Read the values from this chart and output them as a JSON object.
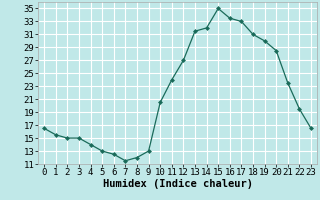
{
  "x": [
    0,
    1,
    2,
    3,
    4,
    5,
    6,
    7,
    8,
    9,
    10,
    11,
    12,
    13,
    14,
    15,
    16,
    17,
    18,
    19,
    20,
    21,
    22,
    23
  ],
  "y": [
    16.5,
    15.5,
    15,
    15,
    14,
    13,
    12.5,
    11.5,
    12,
    13,
    20.5,
    24,
    27,
    31.5,
    32,
    35,
    33.5,
    33,
    31,
    30,
    28.5,
    23.5,
    19.5,
    16.5
  ],
  "line_color": "#1a6b5a",
  "marker": "D",
  "marker_size": 2.0,
  "bg_color": "#c0e8e8",
  "grid_color": "#ffffff",
  "xlabel": "Humidex (Indice chaleur)",
  "xlim": [
    -0.5,
    23.5
  ],
  "ylim": [
    11,
    36
  ],
  "yticks": [
    11,
    13,
    15,
    17,
    19,
    21,
    23,
    25,
    27,
    29,
    31,
    33,
    35
  ],
  "xticks": [
    0,
    1,
    2,
    3,
    4,
    5,
    6,
    7,
    8,
    9,
    10,
    11,
    12,
    13,
    14,
    15,
    16,
    17,
    18,
    19,
    20,
    21,
    22,
    23
  ],
  "xlabel_fontsize": 7.5,
  "tick_fontsize": 6.5
}
